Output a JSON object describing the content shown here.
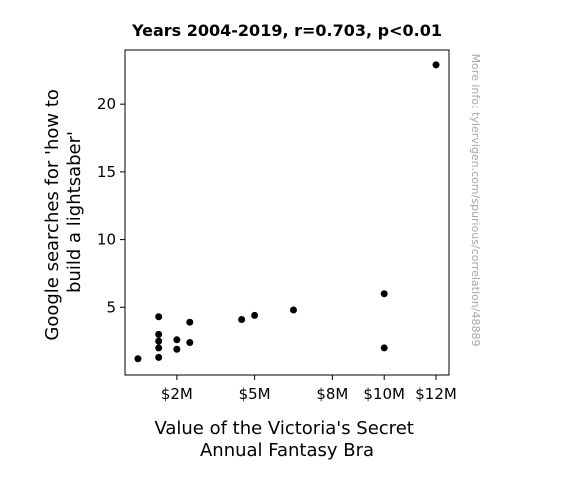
{
  "chart_data": {
    "type": "scatter",
    "title": "Years 2004-2019, r=0.703, p<0.01",
    "xlabel": [
      "Value of the Victoria's Secret",
      "Annual Fantasy Bra"
    ],
    "ylabel": [
      "Google searches for 'how to",
      "build a lightsaber'"
    ],
    "x_ticks": [
      {
        "value": 2000000,
        "label": "$2M"
      },
      {
        "value": 5000000,
        "label": "$5M"
      },
      {
        "value": 8000000,
        "label": "$8M"
      },
      {
        "value": 10000000,
        "label": "$10M"
      },
      {
        "value": 12000000,
        "label": "$12M"
      }
    ],
    "y_ticks": [
      {
        "value": 5,
        "label": "5"
      },
      {
        "value": 10,
        "label": "10"
      },
      {
        "value": 15,
        "label": "15"
      },
      {
        "value": 20,
        "label": "20"
      }
    ],
    "xlim": [
      0,
      12500000
    ],
    "ylim": [
      0,
      24
    ],
    "grid": false,
    "point_color": "#000000",
    "points": [
      {
        "x": 500000,
        "y": 1.2
      },
      {
        "x": 1300000,
        "y": 4.3
      },
      {
        "x": 1300000,
        "y": 3.0
      },
      {
        "x": 1300000,
        "y": 2.5
      },
      {
        "x": 1300000,
        "y": 2.0
      },
      {
        "x": 1300000,
        "y": 1.3
      },
      {
        "x": 2000000,
        "y": 2.6
      },
      {
        "x": 2000000,
        "y": 1.9
      },
      {
        "x": 2500000,
        "y": 3.9
      },
      {
        "x": 2500000,
        "y": 2.4
      },
      {
        "x": 4500000,
        "y": 4.1
      },
      {
        "x": 5000000,
        "y": 4.4
      },
      {
        "x": 6500000,
        "y": 4.8
      },
      {
        "x": 10000000,
        "y": 6.0
      },
      {
        "x": 10000000,
        "y": 2.0
      },
      {
        "x": 12000000,
        "y": 22.9
      }
    ]
  },
  "watermark": "More info: tylervigen.com/spurious/correlation/48889"
}
